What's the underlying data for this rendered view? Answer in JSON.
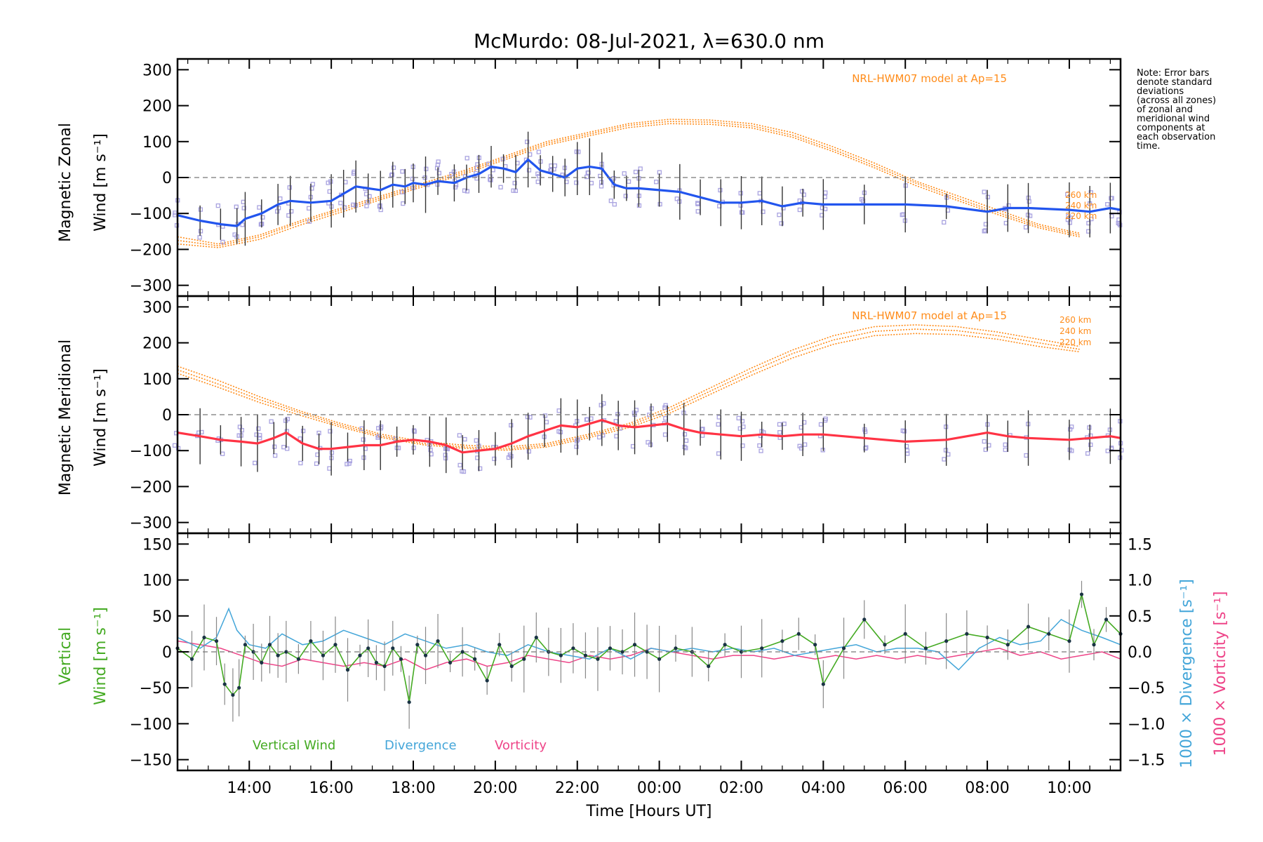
{
  "title": "McMurdo: 08-Jul-2021, λ=630.0 nm",
  "note_lines": [
    "Note: Error bars",
    "denote standard",
    "deviations",
    "(across all zones)",
    "of zonal and",
    "meridional wind",
    "components at",
    "each observation",
    "time."
  ],
  "x_axis": {
    "label": "Time [Hours UT]",
    "ticks": [
      "14:00",
      "16:00",
      "18:00",
      "20:00",
      "22:00",
      "00:00",
      "02:00",
      "04:00",
      "06:00",
      "08:00",
      "10:00"
    ],
    "tick_hours": [
      14,
      16,
      18,
      20,
      22,
      24,
      26,
      28,
      30,
      32,
      34
    ],
    "range_hours": [
      12.25,
      35.25
    ]
  },
  "colors": {
    "zonal": "#2255ee",
    "meridional": "#ff3344",
    "vertical": "#44aa22",
    "divergence": "#44a6d9",
    "vorticity": "#ee4488",
    "model": "#ff8c1a",
    "scatter": "#a9a3e0",
    "errorbar": "#333333"
  },
  "panels": {
    "zonal": {
      "ylabel_line1": "Magnetic Zonal",
      "ylabel_line2": "Wind [m s⁻¹]",
      "model_label": "NRL-HWM07 model at Ap=15",
      "alt_labels": [
        "260 km",
        "240 km",
        "220 km"
      ],
      "yticks": [
        "300",
        "200",
        "100",
        "0",
        "−100",
        "−200",
        "−300"
      ]
    },
    "meridional": {
      "ylabel_line1": "Magnetic Meridional",
      "ylabel_line2": "Wind [m s⁻¹]",
      "model_label": "NRL-HWM07 model at Ap=15",
      "alt_labels": [
        "260 km",
        "240 km",
        "220 km"
      ],
      "yticks": [
        "300",
        "200",
        "100",
        "0",
        "−100",
        "−200",
        "−300"
      ]
    },
    "vertical": {
      "ylabel_line1": "Vertical",
      "ylabel_line2": "Wind [m s⁻¹]",
      "right_label_div": "1000 × Divergence [s⁻¹]",
      "right_label_vort": "1000 × Vorticity [s⁻¹]",
      "yticks": [
        "150",
        "100",
        "50",
        "0",
        "−50",
        "−100",
        "−150"
      ],
      "right_ticks": [
        "1.5",
        "1.0",
        "0.5",
        "0.0",
        "−0.5",
        "−1.0",
        "−1.5"
      ],
      "legend": [
        "Vertical Wind",
        "Divergence",
        "Vorticity"
      ]
    }
  },
  "chart_data": [
    {
      "type": "line",
      "name": "Magnetic Zonal Wind",
      "xlabel": "Time [Hours UT]",
      "ylabel": "Magnetic Zonal Wind [m s-1]",
      "ylim": [
        -330,
        330
      ],
      "x": [
        12.25,
        12.8,
        13.3,
        13.7,
        13.9,
        14.3,
        14.7,
        15.0,
        15.5,
        16.0,
        16.3,
        16.6,
        16.9,
        17.2,
        17.5,
        17.8,
        18.0,
        18.3,
        18.6,
        19.0,
        19.3,
        19.6,
        19.9,
        20.2,
        20.5,
        20.8,
        21.1,
        21.4,
        21.7,
        22.0,
        22.3,
        22.6,
        22.9,
        23.2,
        23.5,
        24.0,
        24.5,
        25.0,
        25.5,
        26.0,
        26.5,
        27.0,
        27.5,
        28.0,
        29.0,
        30.0,
        31.0,
        32.0,
        32.5,
        33.0,
        34.0,
        34.5,
        35.0,
        35.25
      ],
      "values": [
        -105,
        -120,
        -130,
        -135,
        -115,
        -100,
        -75,
        -65,
        -70,
        -65,
        -45,
        -25,
        -30,
        -35,
        -20,
        -25,
        -15,
        -20,
        -10,
        -15,
        0,
        10,
        30,
        25,
        15,
        50,
        20,
        10,
        0,
        25,
        30,
        25,
        -20,
        -30,
        -30,
        -35,
        -40,
        -55,
        -70,
        -70,
        -65,
        -80,
        -70,
        -75,
        -75,
        -75,
        -80,
        -95,
        -85,
        -85,
        -90,
        -95,
        -85,
        -90
      ],
      "model_260km": [
        -165,
        -185,
        -160,
        -120,
        -85,
        -50,
        -15,
        20,
        60,
        100,
        125,
        150,
        162,
        160,
        150,
        125,
        85,
        40,
        -10,
        -50,
        -90,
        -130,
        -155
      ],
      "model_240km": [
        -175,
        -190,
        -165,
        -125,
        -90,
        -55,
        -20,
        15,
        55,
        95,
        120,
        145,
        156,
        154,
        144,
        118,
        78,
        33,
        -15,
        -57,
        -97,
        -135,
        -160
      ],
      "model_220km": [
        -185,
        -195,
        -172,
        -132,
        -96,
        -60,
        -25,
        10,
        50,
        90,
        115,
        139,
        150,
        148,
        138,
        112,
        72,
        27,
        -22,
        -63,
        -103,
        -140,
        -165
      ],
      "model_hours": [
        12.25,
        13.25,
        14.25,
        15.25,
        16.25,
        17.25,
        18.25,
        19.25,
        20.25,
        21.25,
        22.25,
        23.25,
        24.25,
        25.25,
        26.25,
        27.25,
        28.25,
        29.25,
        30.25,
        31.25,
        32.25,
        33.25,
        34.25
      ]
    },
    {
      "type": "line",
      "name": "Magnetic Meridional Wind",
      "xlabel": "Time [Hours UT]",
      "ylabel": "Magnetic Meridional Wind [m s-1]",
      "ylim": [
        -330,
        330
      ],
      "x": [
        12.25,
        12.8,
        13.3,
        13.8,
        14.2,
        14.6,
        14.9,
        15.3,
        15.7,
        16.0,
        16.4,
        16.8,
        17.2,
        17.6,
        18.0,
        18.4,
        18.8,
        19.2,
        19.6,
        20.0,
        20.4,
        20.8,
        21.2,
        21.6,
        22.0,
        22.3,
        22.6,
        23.0,
        23.4,
        23.8,
        24.2,
        24.6,
        25.0,
        25.5,
        26.0,
        26.5,
        27.0,
        27.5,
        28.0,
        29.0,
        30.0,
        31.0,
        32.0,
        32.5,
        33.0,
        34.0,
        34.5,
        35.0,
        35.25
      ],
      "values": [
        -50,
        -60,
        -70,
        -75,
        -80,
        -65,
        -50,
        -80,
        -95,
        -95,
        -90,
        -85,
        -85,
        -75,
        -70,
        -75,
        -85,
        -105,
        -100,
        -95,
        -80,
        -60,
        -45,
        -30,
        -35,
        -25,
        -15,
        -30,
        -35,
        -30,
        -25,
        -40,
        -50,
        -55,
        -60,
        -55,
        -60,
        -55,
        -55,
        -65,
        -75,
        -70,
        -50,
        -60,
        -65,
        -70,
        -65,
        -60,
        -65
      ],
      "model_260km": [
        135,
        95,
        50,
        10,
        -25,
        -55,
        -75,
        -85,
        -90,
        -80,
        -55,
        -25,
        20,
        75,
        130,
        180,
        220,
        245,
        250,
        245,
        230,
        210,
        190
      ],
      "model_240km": [
        125,
        85,
        42,
        5,
        -30,
        -60,
        -80,
        -90,
        -95,
        -85,
        -60,
        -30,
        12,
        66,
        120,
        170,
        208,
        232,
        238,
        234,
        220,
        200,
        182
      ],
      "model_220km": [
        115,
        76,
        34,
        -2,
        -35,
        -64,
        -84,
        -94,
        -99,
        -90,
        -65,
        -36,
        4,
        57,
        110,
        158,
        196,
        220,
        226,
        223,
        210,
        190,
        175
      ],
      "model_hours": [
        12.25,
        13.25,
        14.25,
        15.25,
        16.25,
        17.25,
        18.25,
        19.25,
        20.25,
        21.25,
        22.25,
        23.25,
        24.25,
        25.25,
        26.25,
        27.25,
        28.25,
        29.25,
        30.25,
        31.25,
        32.25,
        33.25,
        34.25
      ]
    },
    {
      "type": "line",
      "name": "Vertical Wind / Divergence / Vorticity",
      "xlabel": "Time [Hours UT]",
      "ylabel": "Vertical Wind [m s-1]",
      "ylim": [
        -165,
        165
      ],
      "y2lim": [
        -1.65,
        1.65
      ],
      "series": [
        {
          "name": "Vertical Wind",
          "x": [
            12.25,
            12.6,
            12.9,
            13.2,
            13.4,
            13.6,
            13.75,
            13.9,
            14.1,
            14.3,
            14.5,
            14.7,
            14.9,
            15.2,
            15.5,
            15.8,
            16.1,
            16.4,
            16.7,
            16.9,
            17.1,
            17.3,
            17.5,
            17.7,
            17.9,
            18.1,
            18.3,
            18.6,
            18.9,
            19.2,
            19.5,
            19.8,
            20.1,
            20.4,
            20.7,
            21.0,
            21.3,
            21.6,
            21.9,
            22.2,
            22.5,
            22.8,
            23.1,
            23.4,
            23.7,
            24.0,
            24.4,
            24.8,
            25.2,
            25.6,
            26.0,
            26.5,
            27.0,
            27.4,
            27.8,
            28.0,
            28.5,
            29.0,
            29.5,
            30.0,
            30.5,
            31.0,
            31.5,
            32.0,
            32.5,
            33.0,
            33.5,
            34.0,
            34.3,
            34.6,
            34.9,
            35.25
          ],
          "values": [
            5,
            -10,
            20,
            15,
            -45,
            -60,
            -50,
            10,
            0,
            -15,
            10,
            -5,
            0,
            -10,
            15,
            -5,
            10,
            -25,
            -5,
            5,
            -15,
            -20,
            5,
            -10,
            -70,
            10,
            -5,
            15,
            -15,
            0,
            -10,
            -40,
            10,
            -20,
            -10,
            20,
            0,
            -5,
            5,
            -5,
            -10,
            5,
            0,
            10,
            0,
            -10,
            5,
            0,
            -20,
            10,
            0,
            5,
            15,
            25,
            10,
            -45,
            5,
            45,
            10,
            25,
            5,
            15,
            25,
            20,
            10,
            35,
            25,
            15,
            80,
            10,
            45,
            25
          ]
        },
        {
          "name": "Divergence (1000x)",
          "x": [
            12.25,
            12.8,
            13.2,
            13.5,
            13.7,
            14.0,
            14.4,
            14.8,
            15.3,
            15.8,
            16.3,
            16.8,
            17.3,
            17.8,
            18.3,
            18.8,
            19.3,
            19.8,
            20.3,
            20.8,
            21.3,
            21.8,
            22.3,
            22.8,
            23.3,
            23.8,
            24.3,
            24.8,
            25.3,
            25.8,
            26.3,
            26.8,
            27.3,
            27.8,
            28.3,
            28.8,
            29.3,
            29.8,
            30.3,
            30.8,
            31.3,
            31.8,
            32.3,
            32.8,
            33.3,
            33.8,
            34.3,
            34.8,
            35.25
          ],
          "values": [
            0.2,
            0.05,
            0.2,
            0.6,
            0.3,
            0.1,
            0.05,
            0.25,
            0.1,
            0.15,
            0.3,
            0.2,
            0.1,
            0.25,
            0.15,
            0.05,
            0.1,
            0.0,
            -0.05,
            0.1,
            0.0,
            -0.05,
            -0.1,
            0.05,
            -0.1,
            0.05,
            0.0,
            0.05,
            0.0,
            0.05,
            0.0,
            0.05,
            -0.05,
            0.0,
            0.05,
            0.1,
            0.0,
            0.05,
            0.05,
            0.0,
            -0.25,
            0.05,
            0.2,
            0.1,
            0.15,
            0.45,
            0.3,
            0.2,
            0.1
          ]
        },
        {
          "name": "Vorticity (1000x)",
          "x": [
            12.25,
            12.8,
            13.3,
            13.8,
            14.3,
            14.8,
            15.3,
            15.8,
            16.3,
            16.8,
            17.3,
            17.8,
            18.3,
            18.8,
            19.3,
            19.8,
            20.3,
            20.8,
            21.3,
            21.8,
            22.3,
            22.8,
            23.3,
            23.8,
            24.3,
            24.8,
            25.3,
            25.8,
            26.3,
            26.8,
            27.3,
            27.8,
            28.3,
            28.8,
            29.3,
            29.8,
            30.3,
            30.8,
            31.3,
            31.8,
            32.3,
            32.8,
            33.3,
            33.8,
            34.3,
            34.8,
            35.25
          ],
          "values": [
            0.15,
            0.1,
            0.05,
            -0.05,
            -0.15,
            -0.2,
            -0.1,
            -0.15,
            -0.2,
            -0.15,
            -0.2,
            -0.1,
            -0.25,
            -0.15,
            -0.1,
            -0.2,
            -0.15,
            -0.05,
            -0.1,
            -0.15,
            -0.05,
            -0.1,
            -0.05,
            0.05,
            0.0,
            -0.05,
            -0.1,
            -0.05,
            -0.05,
            -0.1,
            -0.05,
            -0.1,
            -0.05,
            -0.1,
            -0.05,
            -0.1,
            -0.05,
            -0.1,
            -0.05,
            0.0,
            0.05,
            -0.05,
            0.0,
            -0.1,
            -0.05,
            0.0,
            -0.1
          ]
        }
      ]
    }
  ]
}
